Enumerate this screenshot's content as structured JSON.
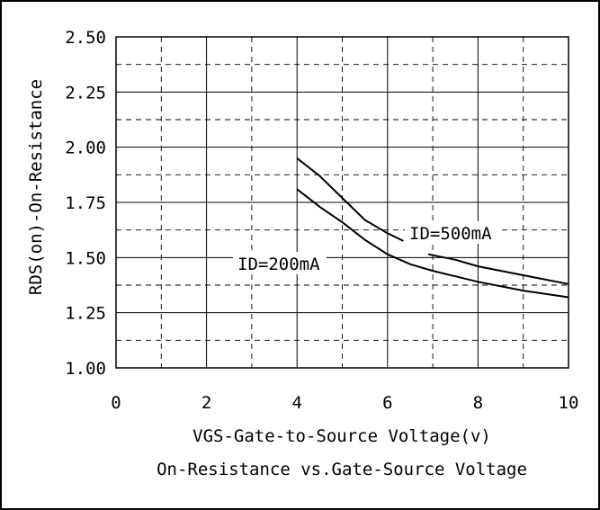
{
  "chart_data": {
    "type": "line",
    "title": "On-Resistance vs.Gate-Source Voltage",
    "xlabel": "VGS-Gate-to-Source Voltage(v)",
    "ylabel": "RDS(on)-On-Resistance",
    "xlim": [
      0,
      10
    ],
    "ylim": [
      1.0,
      2.5
    ],
    "xticks": [
      "0",
      "2",
      "4",
      "6",
      "8",
      "10"
    ],
    "yticks": [
      "1.00",
      "1.25",
      "1.50",
      "1.75",
      "2.00",
      "2.25",
      "2.50"
    ],
    "grid": true,
    "series": [
      {
        "name": "ID=500mA",
        "x": [
          4.0,
          4.5,
          5.0,
          5.5,
          6.0,
          6.35,
          6.9,
          7.5,
          8.0,
          9.0,
          10.0
        ],
        "y": [
          1.95,
          1.87,
          1.77,
          1.67,
          1.61,
          1.575,
          1.515,
          1.49,
          1.46,
          1.42,
          1.38
        ],
        "gaps": [
          [
            6.35,
            6.9
          ]
        ]
      },
      {
        "name": "ID=200mA",
        "x": [
          4.0,
          4.5,
          5.0,
          5.5,
          6.0,
          6.5,
          7.0,
          8.0,
          9.0,
          10.0
        ],
        "y": [
          1.81,
          1.73,
          1.66,
          1.58,
          1.515,
          1.47,
          1.44,
          1.39,
          1.35,
          1.32
        ]
      }
    ],
    "annotations": [
      {
        "text": "ID=500mA",
        "series": "ID=500mA"
      },
      {
        "text": "ID=200mA",
        "series": "ID=200mA"
      }
    ]
  }
}
